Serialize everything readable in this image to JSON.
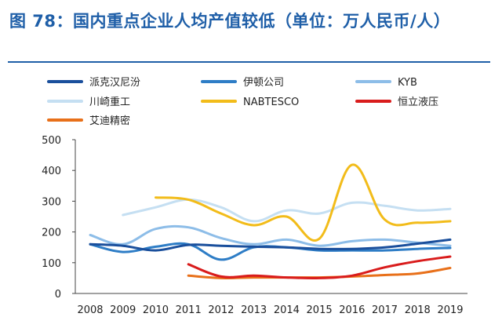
{
  "title": "图 78：国内重点企业人均产值较低（单位：万人民币/人）",
  "chart_data": {
    "type": "line",
    "title": "图 78：国内重点企业人均产值较低（单位：万人民币/人）",
    "xlabel": "",
    "ylabel": "",
    "x": [
      2008,
      2009,
      2010,
      2011,
      2012,
      2013,
      2014,
      2015,
      2016,
      2017,
      2018,
      2019
    ],
    "x_ticks": [
      "2008",
      "2009",
      "2010",
      "2011",
      "2012",
      "2013",
      "2014",
      "2015",
      "2016",
      "2017",
      "2018",
      "2019"
    ],
    "ylim": [
      0,
      500
    ],
    "y_ticks": [
      0,
      100,
      200,
      300,
      400,
      500
    ],
    "grid": false,
    "legend_position": "top",
    "series": [
      {
        "name": "派克汉尼汾",
        "color": "#1a4f9c",
        "values": [
          160,
          155,
          140,
          158,
          155,
          152,
          150,
          145,
          145,
          150,
          162,
          175
        ]
      },
      {
        "name": "伊顿公司",
        "color": "#2e7dc6",
        "values": [
          160,
          135,
          152,
          160,
          110,
          150,
          150,
          140,
          140,
          140,
          145,
          148
        ]
      },
      {
        "name": "KYB",
        "color": "#8dbde8",
        "values": [
          190,
          160,
          210,
          215,
          180,
          160,
          175,
          155,
          170,
          175,
          165,
          155
        ]
      },
      {
        "name": "川崎重工",
        "color": "#c5dff2",
        "values": [
          null,
          255,
          280,
          305,
          280,
          235,
          270,
          260,
          295,
          285,
          270,
          275
        ]
      },
      {
        "name": "NABTESCO",
        "color": "#f2bc1a",
        "values": [
          null,
          null,
          312,
          305,
          260,
          222,
          250,
          178,
          418,
          240,
          230,
          235
        ]
      },
      {
        "name": "恒立液压",
        "color": "#d91c1c",
        "values": [
          null,
          null,
          null,
          95,
          55,
          58,
          52,
          50,
          58,
          85,
          105,
          120
        ]
      },
      {
        "name": "艾迪精密",
        "color": "#e8701a",
        "values": [
          null,
          null,
          null,
          58,
          50,
          52,
          52,
          52,
          55,
          60,
          65,
          83
        ]
      }
    ]
  }
}
